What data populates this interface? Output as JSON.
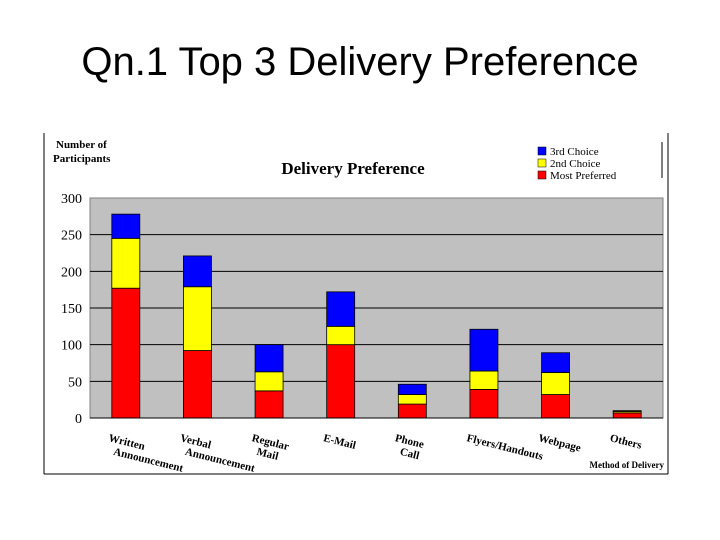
{
  "slide": {
    "title": "Qn.1 Top 3 Delivery Preference"
  },
  "chart_data": {
    "type": "bar",
    "stacked": true,
    "title": "Delivery Preference",
    "ylabel": "Number of Participants",
    "xlabel": "Method of Delivery",
    "ylim": [
      0,
      300
    ],
    "yticks": [
      0,
      50,
      100,
      150,
      200,
      250,
      300
    ],
    "categories": [
      "Written Announcement",
      "Verbal Announcement",
      "Regular Mail",
      "E-Mail",
      "Phone Call",
      "Flyers/Handouts",
      "Webpage",
      "Others"
    ],
    "series": [
      {
        "name": "Most Preferred",
        "color": "#ff0000",
        "values": [
          177,
          92,
          37,
          100,
          19,
          39,
          32,
          7
        ]
      },
      {
        "name": "2nd Choice",
        "color": "#ffff00",
        "values": [
          68,
          87,
          26,
          25,
          13,
          25,
          30,
          2
        ]
      },
      {
        "name": "3rd Choice",
        "color": "#0000ff",
        "values": [
          33,
          42,
          37,
          47,
          14,
          57,
          27,
          1
        ]
      }
    ],
    "legend": {
      "position": "top-right",
      "order": [
        "3rd Choice",
        "2nd Choice",
        "Most Preferred"
      ]
    },
    "grid": true,
    "plot_background": "#c0c0c0"
  }
}
